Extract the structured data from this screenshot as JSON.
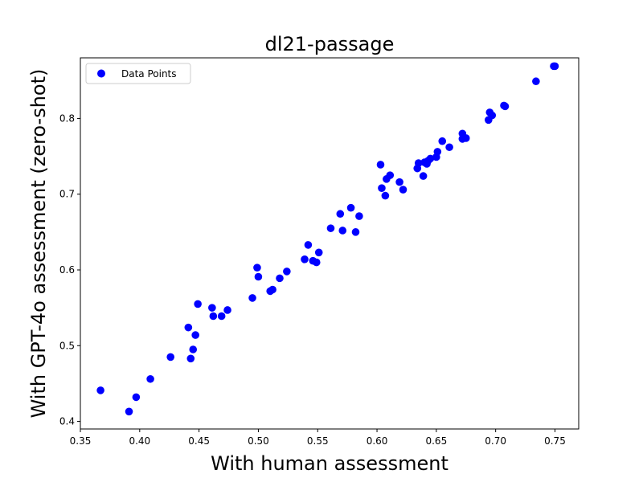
{
  "chart_data": {
    "type": "scatter",
    "title": "dl21-passage",
    "xlabel": "With human assessment",
    "ylabel": "With GPT-4o assessment (zero-shot)",
    "xlim": [
      0.35,
      0.77
    ],
    "ylim": [
      0.39,
      0.88
    ],
    "xticks": [
      "0.35",
      "0.40",
      "0.45",
      "0.50",
      "0.55",
      "0.60",
      "0.65",
      "0.70",
      "0.75"
    ],
    "yticks": [
      "0.4",
      "0.5",
      "0.6",
      "0.7",
      "0.8"
    ],
    "grid": false,
    "legend": {
      "position": "top-left",
      "entries": [
        "Data Points"
      ]
    },
    "series": [
      {
        "name": "Data Points",
        "color": "#0000ff",
        "points": [
          [
            0.367,
            0.441
          ],
          [
            0.391,
            0.413
          ],
          [
            0.397,
            0.432
          ],
          [
            0.409,
            0.456
          ],
          [
            0.426,
            0.485
          ],
          [
            0.441,
            0.524
          ],
          [
            0.443,
            0.483
          ],
          [
            0.445,
            0.495
          ],
          [
            0.447,
            0.514
          ],
          [
            0.449,
            0.555
          ],
          [
            0.461,
            0.55
          ],
          [
            0.462,
            0.539
          ],
          [
            0.469,
            0.539
          ],
          [
            0.474,
            0.547
          ],
          [
            0.495,
            0.563
          ],
          [
            0.499,
            0.603
          ],
          [
            0.5,
            0.591
          ],
          [
            0.51,
            0.572
          ],
          [
            0.512,
            0.574
          ],
          [
            0.518,
            0.589
          ],
          [
            0.524,
            0.598
          ],
          [
            0.539,
            0.614
          ],
          [
            0.542,
            0.633
          ],
          [
            0.546,
            0.612
          ],
          [
            0.549,
            0.61
          ],
          [
            0.551,
            0.623
          ],
          [
            0.561,
            0.655
          ],
          [
            0.569,
            0.674
          ],
          [
            0.571,
            0.652
          ],
          [
            0.578,
            0.682
          ],
          [
            0.582,
            0.65
          ],
          [
            0.585,
            0.671
          ],
          [
            0.603,
            0.739
          ],
          [
            0.604,
            0.708
          ],
          [
            0.607,
            0.698
          ],
          [
            0.608,
            0.72
          ],
          [
            0.611,
            0.725
          ],
          [
            0.619,
            0.716
          ],
          [
            0.622,
            0.706
          ],
          [
            0.634,
            0.734
          ],
          [
            0.635,
            0.741
          ],
          [
            0.639,
            0.724
          ],
          [
            0.64,
            0.742
          ],
          [
            0.642,
            0.74
          ],
          [
            0.643,
            0.744
          ],
          [
            0.645,
            0.747
          ],
          [
            0.65,
            0.749
          ],
          [
            0.651,
            0.756
          ],
          [
            0.655,
            0.77
          ],
          [
            0.661,
            0.762
          ],
          [
            0.672,
            0.78
          ],
          [
            0.672,
            0.773
          ],
          [
            0.675,
            0.774
          ],
          [
            0.694,
            0.798
          ],
          [
            0.695,
            0.808
          ],
          [
            0.697,
            0.804
          ],
          [
            0.707,
            0.817
          ],
          [
            0.708,
            0.816
          ],
          [
            0.734,
            0.849
          ],
          [
            0.749,
            0.869
          ],
          [
            0.75,
            0.869
          ]
        ]
      }
    ]
  }
}
